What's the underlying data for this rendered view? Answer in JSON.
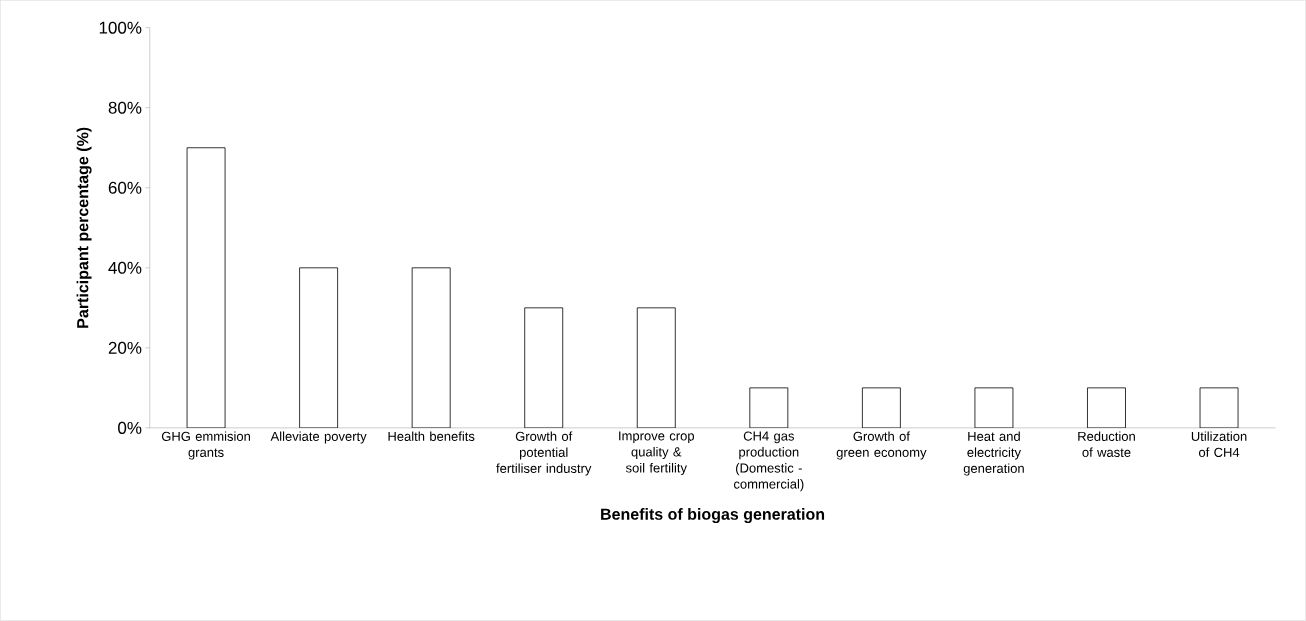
{
  "chart_data": {
    "type": "bar",
    "xlabel": "Benefits of biogas generation",
    "ylabel": "Participant percentage (%)",
    "categories": [
      "GHG emmision grants",
      "Alleviate poverty",
      "Health benefits",
      "Growth of potential fertiliser industry",
      "Improve crop quality & soil fertility",
      "CH4 gas production (Domestic - commercial)",
      "Growth of green economy",
      "Heat and electricity generation",
      "Reduction of waste",
      "Utilization of CH4"
    ],
    "values": [
      70,
      40,
      40,
      30,
      30,
      10,
      10,
      10,
      10,
      10
    ],
    "color": "#ffffff",
    "ylim": [
      0,
      100
    ],
    "yticks": [
      {
        "value": 0,
        "label": "0%"
      },
      {
        "value": 20,
        "label": "20%"
      },
      {
        "value": 40,
        "label": "40%"
      },
      {
        "value": 60,
        "label": "60%"
      },
      {
        "value": 80,
        "label": "80%"
      },
      {
        "value": 100,
        "label": "100%"
      }
    ],
    "grid": false
  }
}
